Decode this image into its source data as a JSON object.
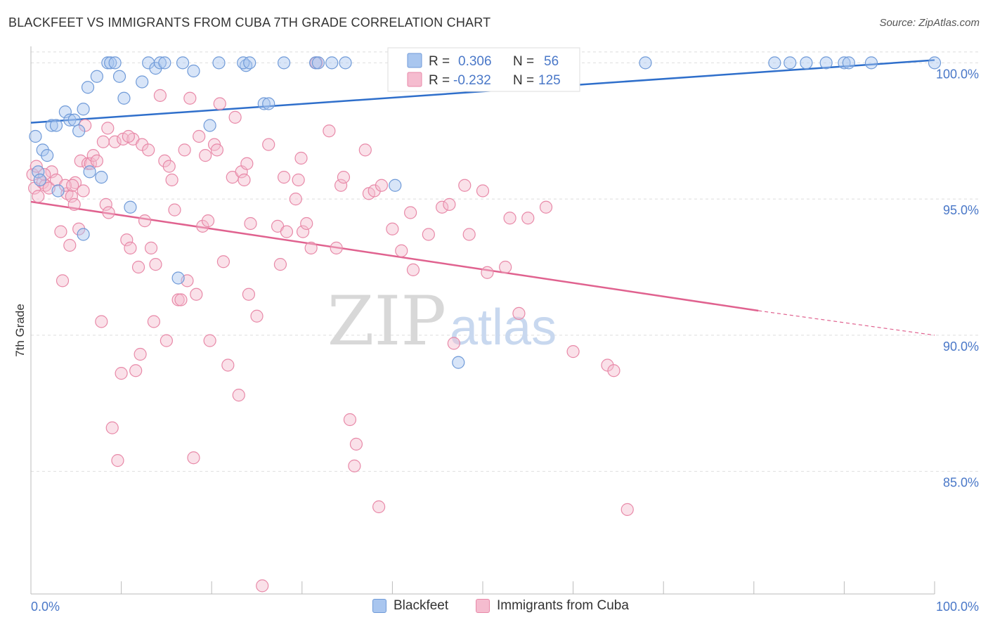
{
  "title": "BLACKFEET VS IMMIGRANTS FROM CUBA 7TH GRADE CORRELATION CHART",
  "source": "Source: ZipAtlas.com",
  "watermark": {
    "zip": "ZIP",
    "atlas": "atlas"
  },
  "colors": {
    "blue_fill": "#a9c6ef",
    "blue_stroke": "#6f9ad8",
    "blue_line": "#2f6fcb",
    "pink_fill": "#f5bccf",
    "pink_stroke": "#e889a8",
    "pink_line": "#e0628f",
    "axis_text": "#4a78c8",
    "grid": "#dedede"
  },
  "legend": {
    "rows": [
      {
        "r_label": "R =",
        "r_value": "0.306",
        "n_label": "N =",
        "n_value": "56"
      },
      {
        "r_label": "R =",
        "r_value": "-0.232",
        "n_label": "N =",
        "n_value": "125"
      }
    ]
  },
  "bottom_legend": {
    "series1": "Blackfeet",
    "series2": "Immigrants from Cuba"
  },
  "chart_data": {
    "type": "scatter",
    "title": "BLACKFEET VS IMMIGRANTS FROM CUBA 7TH GRADE CORRELATION CHART",
    "xlabel": "",
    "ylabel": "7th Grade",
    "xlim": [
      0,
      100
    ],
    "ylim": [
      80.5,
      100.5
    ],
    "x_tick_labels": [
      "0.0%",
      "100.0%"
    ],
    "y_ticks": [
      85,
      90,
      95,
      100
    ],
    "y_tick_labels": [
      "85.0%",
      "90.0%",
      "95.0%",
      "100.0%"
    ],
    "grid": true,
    "legend_position": "top-center",
    "series": [
      {
        "name": "Blackfeet",
        "r": 0.306,
        "n": 56,
        "trend": {
          "x0": 0,
          "y0": 97.8,
          "x1": 100,
          "y1": 100.1
        },
        "points": [
          [
            0.5,
            97.3
          ],
          [
            0.8,
            96.0
          ],
          [
            1.3,
            96.8
          ],
          [
            1.8,
            96.6
          ],
          [
            2.3,
            97.7
          ],
          [
            2.8,
            97.7
          ],
          [
            3.8,
            98.2
          ],
          [
            4.3,
            97.9
          ],
          [
            4.8,
            97.9
          ],
          [
            5.3,
            97.5
          ],
          [
            5.8,
            98.3
          ],
          [
            6.5,
            96.0
          ],
          [
            6.3,
            99.1
          ],
          [
            7.3,
            99.5
          ],
          [
            7.8,
            95.8
          ],
          [
            8.5,
            100.0
          ],
          [
            8.8,
            100.0
          ],
          [
            9.3,
            100.0
          ],
          [
            9.8,
            99.5
          ],
          [
            10.3,
            98.7
          ],
          [
            11.0,
            94.7
          ],
          [
            12.3,
            99.3
          ],
          [
            13.0,
            100.0
          ],
          [
            13.8,
            99.8
          ],
          [
            14.3,
            100.0
          ],
          [
            14.8,
            100.0
          ],
          [
            16.3,
            92.1
          ],
          [
            16.8,
            100.0
          ],
          [
            18.0,
            99.7
          ],
          [
            19.8,
            97.7
          ],
          [
            20.8,
            100.0
          ],
          [
            23.8,
            99.9
          ],
          [
            23.5,
            100.0
          ],
          [
            24.2,
            100.0
          ],
          [
            25.8,
            98.5
          ],
          [
            26.3,
            98.5
          ],
          [
            28.0,
            100.0
          ],
          [
            31.5,
            100.0
          ],
          [
            31.8,
            100.0
          ],
          [
            33.3,
            100.0
          ],
          [
            34.8,
            100.0
          ],
          [
            40.3,
            95.5
          ],
          [
            47.3,
            89.0
          ],
          [
            51.0,
            100.0
          ],
          [
            68.0,
            100.0
          ],
          [
            82.3,
            100.0
          ],
          [
            84.0,
            100.0
          ],
          [
            85.8,
            100.0
          ],
          [
            88.0,
            100.0
          ],
          [
            90.0,
            100.0
          ],
          [
            90.5,
            100.0
          ],
          [
            93.0,
            100.0
          ],
          [
            100.0,
            100.0
          ],
          [
            5.8,
            93.7
          ],
          [
            1.0,
            95.7
          ],
          [
            3.0,
            95.3
          ]
        ]
      },
      {
        "name": "Immigrants from Cuba",
        "r": -0.232,
        "n": 125,
        "trend": {
          "x0": 0,
          "y0": 94.9,
          "x1": 80.5,
          "y1": 90.9,
          "dash_to_x": 100,
          "dash_to_y": 90.0
        },
        "points": [
          [
            0.2,
            95.9
          ],
          [
            0.4,
            95.4
          ],
          [
            0.6,
            96.2
          ],
          [
            0.8,
            95.1
          ],
          [
            1.3,
            95.6
          ],
          [
            1.6,
            95.5
          ],
          [
            2.0,
            95.4
          ],
          [
            2.3,
            96.0
          ],
          [
            2.8,
            95.7
          ],
          [
            3.3,
            93.8
          ],
          [
            3.5,
            92.0
          ],
          [
            4.0,
            95.2
          ],
          [
            4.3,
            93.3
          ],
          [
            4.5,
            95.1
          ],
          [
            4.8,
            94.8
          ],
          [
            4.9,
            95.6
          ],
          [
            5.3,
            93.9
          ],
          [
            5.5,
            96.4
          ],
          [
            5.8,
            95.3
          ],
          [
            6.0,
            97.7
          ],
          [
            6.3,
            96.3
          ],
          [
            6.6,
            96.3
          ],
          [
            6.9,
            96.6
          ],
          [
            7.3,
            96.4
          ],
          [
            7.8,
            90.5
          ],
          [
            8.0,
            97.1
          ],
          [
            8.3,
            94.8
          ],
          [
            8.5,
            97.6
          ],
          [
            8.6,
            94.5
          ],
          [
            9.0,
            86.6
          ],
          [
            9.3,
            97.1
          ],
          [
            9.6,
            85.4
          ],
          [
            10.0,
            88.6
          ],
          [
            10.2,
            97.2
          ],
          [
            10.6,
            93.5
          ],
          [
            11.0,
            93.2
          ],
          [
            11.3,
            97.2
          ],
          [
            11.6,
            88.7
          ],
          [
            11.9,
            92.5
          ],
          [
            12.1,
            89.3
          ],
          [
            12.3,
            97.0
          ],
          [
            12.6,
            94.2
          ],
          [
            13.0,
            96.8
          ],
          [
            13.3,
            93.2
          ],
          [
            13.6,
            90.5
          ],
          [
            13.8,
            92.6
          ],
          [
            14.3,
            98.8
          ],
          [
            14.8,
            96.4
          ],
          [
            15.0,
            89.8
          ],
          [
            15.3,
            96.2
          ],
          [
            15.6,
            95.7
          ],
          [
            15.9,
            94.6
          ],
          [
            16.3,
            91.3
          ],
          [
            16.6,
            91.3
          ],
          [
            17.0,
            96.8
          ],
          [
            17.3,
            92.0
          ],
          [
            17.6,
            98.7
          ],
          [
            18.0,
            85.5
          ],
          [
            18.3,
            91.5
          ],
          [
            18.6,
            97.3
          ],
          [
            19.0,
            94.0
          ],
          [
            19.3,
            96.6
          ],
          [
            19.6,
            94.2
          ],
          [
            19.8,
            89.8
          ],
          [
            20.3,
            97.0
          ],
          [
            20.6,
            96.8
          ],
          [
            20.9,
            98.5
          ],
          [
            21.3,
            92.7
          ],
          [
            21.8,
            88.9
          ],
          [
            22.3,
            95.8
          ],
          [
            22.6,
            98.0
          ],
          [
            23.0,
            87.8
          ],
          [
            23.3,
            96.0
          ],
          [
            23.6,
            95.7
          ],
          [
            23.9,
            96.3
          ],
          [
            24.1,
            91.5
          ],
          [
            24.3,
            94.1
          ],
          [
            25.0,
            90.7
          ],
          [
            25.6,
            80.8
          ],
          [
            26.3,
            97.0
          ],
          [
            27.3,
            94.0
          ],
          [
            27.6,
            92.6
          ],
          [
            28.0,
            95.8
          ],
          [
            28.3,
            93.8
          ],
          [
            29.3,
            95.0
          ],
          [
            29.6,
            95.7
          ],
          [
            29.9,
            96.5
          ],
          [
            30.1,
            93.8
          ],
          [
            30.5,
            94.1
          ],
          [
            31.0,
            93.2
          ],
          [
            31.6,
            100.0
          ],
          [
            33.0,
            97.5
          ],
          [
            33.8,
            93.2
          ],
          [
            34.3,
            95.5
          ],
          [
            34.6,
            95.8
          ],
          [
            35.3,
            86.9
          ],
          [
            35.8,
            85.2
          ],
          [
            36.0,
            86.0
          ],
          [
            37.0,
            96.8
          ],
          [
            37.4,
            95.2
          ],
          [
            38.0,
            95.3
          ],
          [
            38.5,
            83.7
          ],
          [
            38.8,
            95.5
          ],
          [
            40.0,
            93.9
          ],
          [
            41.0,
            93.1
          ],
          [
            42.0,
            94.5
          ],
          [
            42.3,
            92.4
          ],
          [
            44.0,
            93.7
          ],
          [
            45.5,
            94.7
          ],
          [
            46.3,
            94.8
          ],
          [
            46.8,
            89.7
          ],
          [
            48.0,
            95.5
          ],
          [
            48.5,
            93.7
          ],
          [
            50.0,
            95.3
          ],
          [
            50.5,
            92.3
          ],
          [
            52.5,
            92.5
          ],
          [
            53.0,
            94.3
          ],
          [
            54.0,
            90.8
          ],
          [
            55.0,
            94.3
          ],
          [
            57.0,
            94.7
          ],
          [
            60.0,
            89.4
          ],
          [
            63.8,
            88.9
          ],
          [
            64.5,
            88.7
          ],
          [
            66.0,
            83.6
          ],
          [
            1.5,
            95.9
          ],
          [
            3.8,
            95.5
          ],
          [
            10.8,
            97.3
          ],
          [
            4.6,
            95.5
          ]
        ]
      }
    ]
  }
}
